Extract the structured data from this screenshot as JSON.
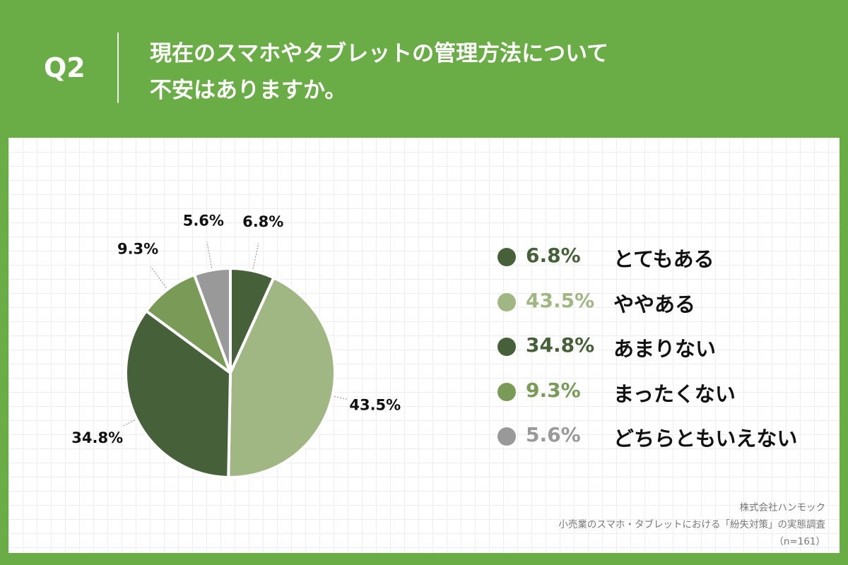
{
  "header": {
    "q_label": "Q2",
    "title_line1": "現在のスマホやタブレットの管理方法について",
    "title_line2": "不安はありますか。"
  },
  "colors": {
    "background": "#6aac46",
    "panel": "#ffffff"
  },
  "chart_data": {
    "type": "pie",
    "title": "",
    "start_angle_deg": 0,
    "direction": "clockwise",
    "slices": [
      {
        "label": "とてもある",
        "value": 6.8,
        "display": "6.8%",
        "color": "#46603a",
        "legend_text_color": "#46603a"
      },
      {
        "label": "ややある",
        "value": 43.5,
        "display": "43.5%",
        "color": "#a0b784",
        "legend_text_color": "#a0b784"
      },
      {
        "label": "あまりない",
        "value": 34.8,
        "display": "34.8%",
        "color": "#46603a",
        "legend_text_color": "#46603a"
      },
      {
        "label": "まったくない",
        "value": 9.3,
        "display": "9.3%",
        "color": "#7a9a57",
        "legend_text_color": "#7a9a57"
      },
      {
        "label": "どちらともいえない",
        "value": 5.6,
        "display": "5.6%",
        "color": "#999999",
        "legend_text_color": "#999999"
      }
    ]
  },
  "source": {
    "company": "株式会社ハンモック",
    "survey": "小売業のスマホ・タブレットにおける「紛失対策」の実態調査",
    "sample": "（n=161）"
  }
}
